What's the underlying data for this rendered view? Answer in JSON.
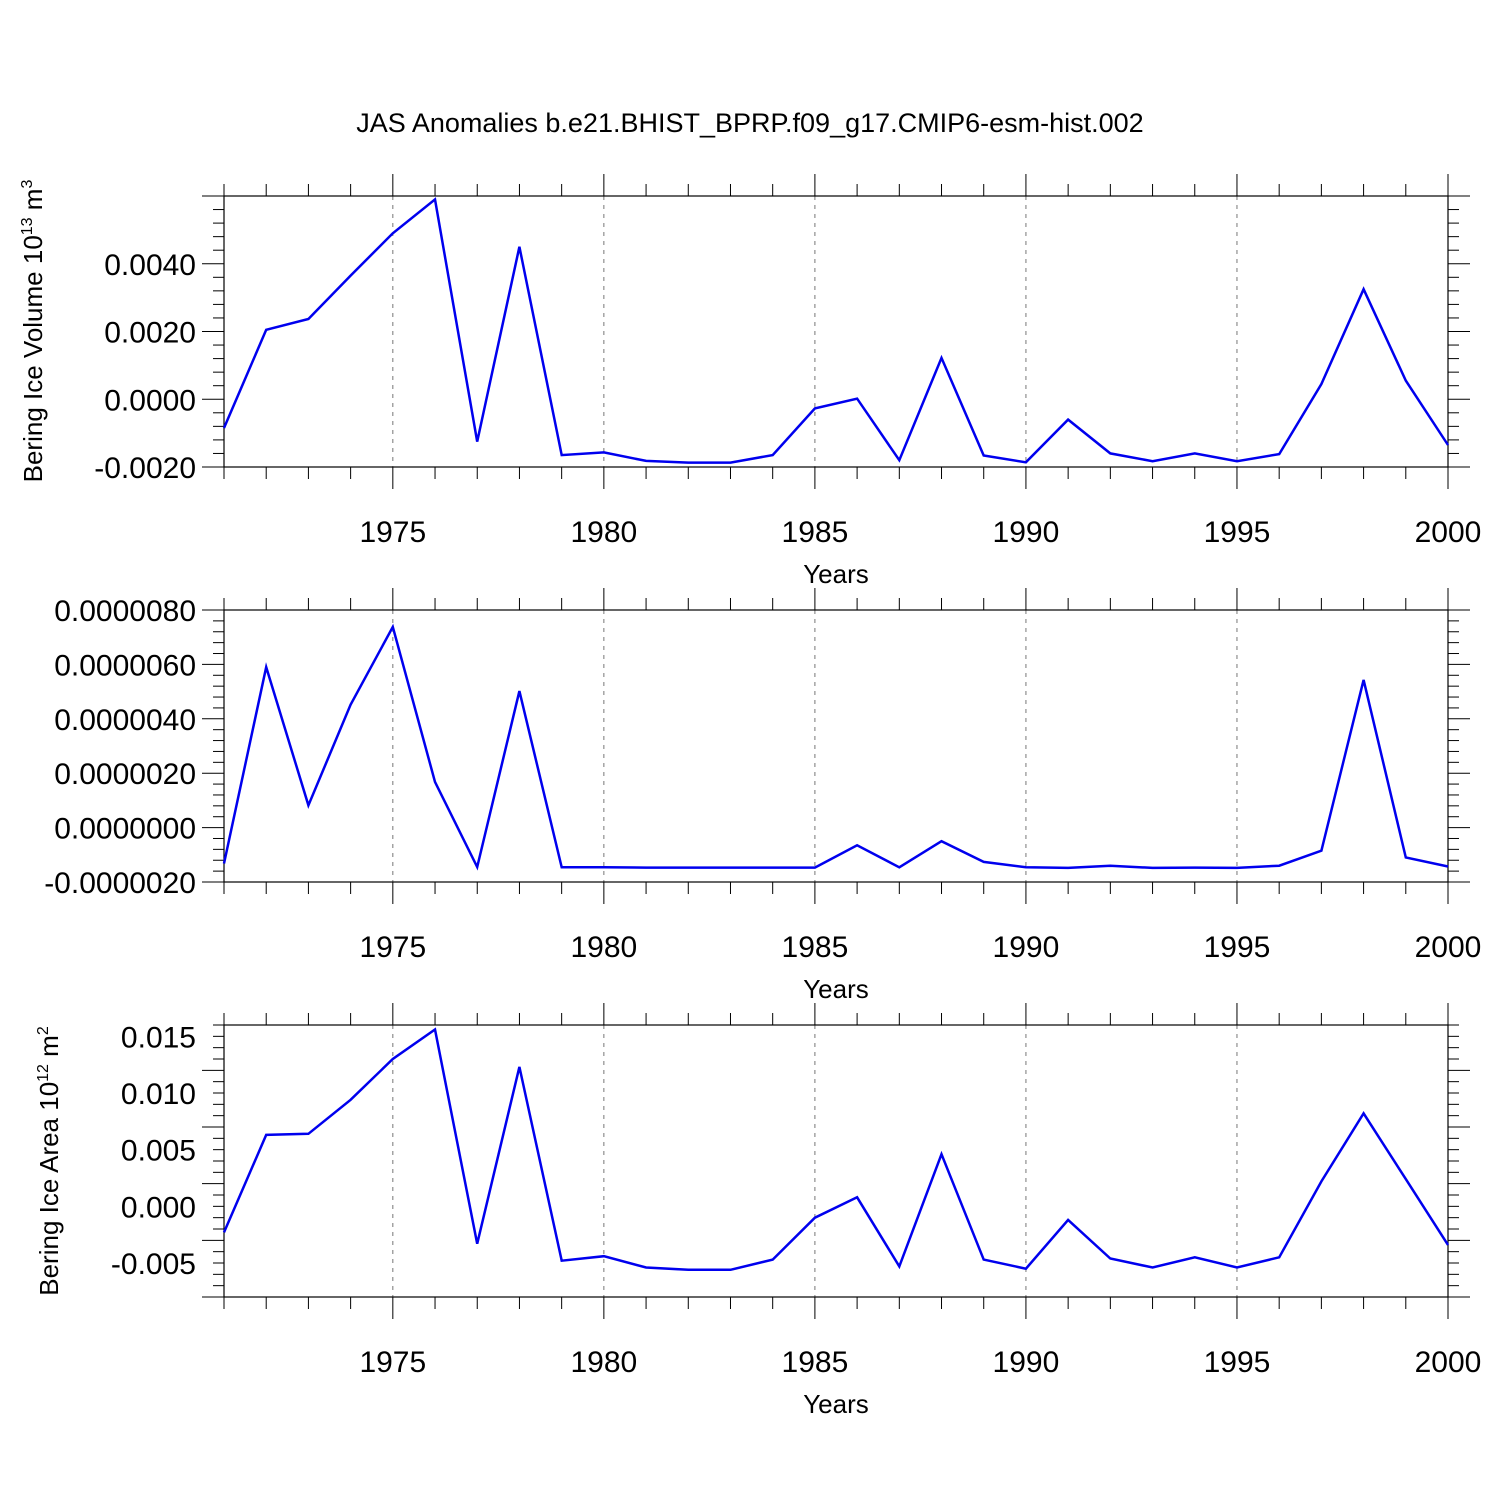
{
  "title": "JAS Anomalies b.e21.BHIST_BPRP.f09_g17.CMIP6-esm-hist.002",
  "chart_data": [
    {
      "type": "line",
      "title": "",
      "xlabel": "Years",
      "ylabel": "Bering Ice Volume 10",
      "ylabel_sup": "13",
      "ylabel_unit": " m",
      "ylabel_unit_sup": "3",
      "xlim": [
        1971,
        2000
      ],
      "ylim": [
        -0.002,
        0.006
      ],
      "xticks": [
        "1975",
        "1980",
        "1985",
        "1990",
        "1995",
        "2000"
      ],
      "yticks": [
        "-0.0020",
        "0.0000",
        "0.0020",
        "0.0040"
      ],
      "color": "#0000ee",
      "grid": "vertical dashed at major x ticks",
      "x": [
        1971,
        1972,
        1973,
        1974,
        1975,
        1976,
        1977,
        1978,
        1979,
        1980,
        1981,
        1982,
        1983,
        1984,
        1985,
        1986,
        1987,
        1988,
        1989,
        1990,
        1991,
        1992,
        1993,
        1994,
        1995,
        1996,
        1997,
        1998,
        1999,
        2000
      ],
      "values": [
        -0.00085,
        0.00205,
        0.00237,
        0.00365,
        0.0049,
        0.0059,
        -0.00125,
        0.0045,
        -0.00165,
        -0.00157,
        -0.00182,
        -0.00187,
        -0.00187,
        -0.00165,
        -0.00027,
        2e-05,
        -0.0018,
        0.00122,
        -0.00166,
        -0.00186,
        -0.0006,
        -0.0016,
        -0.00183,
        -0.0016,
        -0.00183,
        -0.00162,
        0.00045,
        0.00325,
        0.00055,
        -0.00135
      ]
    },
    {
      "type": "line",
      "title": "",
      "xlabel": "Years",
      "ylabel": "",
      "xlim": [
        1971,
        2000
      ],
      "ylim": [
        -2e-06,
        8e-06
      ],
      "xticks": [
        "1975",
        "1980",
        "1985",
        "1990",
        "1995",
        "2000"
      ],
      "yticks": [
        "-0.0000020",
        "0.0000000",
        "0.0000020",
        "0.0000040",
        "0.0000060",
        "0.0000080"
      ],
      "color": "#0000ee",
      "grid": "vertical dashed at major x ticks",
      "x": [
        1971,
        1972,
        1973,
        1974,
        1975,
        1976,
        1977,
        1978,
        1979,
        1980,
        1981,
        1982,
        1983,
        1984,
        1985,
        1986,
        1987,
        1988,
        1989,
        1990,
        1991,
        1992,
        1993,
        1994,
        1995,
        1996,
        1997,
        1998,
        1999,
        2000
      ],
      "values": [
        -1.32e-06,
        5.9e-06,
        8.2e-07,
        4.52e-06,
        7.38e-06,
        1.68e-06,
        -1.45e-06,
        5.02e-06,
        -1.46e-06,
        -1.46e-06,
        -1.47e-06,
        -1.47e-06,
        -1.47e-06,
        -1.47e-06,
        -1.47e-06,
        -6.5e-07,
        -1.46e-06,
        -5e-07,
        -1.26e-06,
        -1.46e-06,
        -1.48e-06,
        -1.4e-06,
        -1.48e-06,
        -1.47e-06,
        -1.48e-06,
        -1.4e-06,
        -8.5e-07,
        5.43e-06,
        -1.1e-06,
        -1.43e-06
      ]
    },
    {
      "type": "line",
      "title": "",
      "xlabel": "Years",
      "ylabel": "Bering Ice Area 10",
      "ylabel_sup": "12",
      "ylabel_unit": " m",
      "ylabel_unit_sup": "2",
      "xlim": [
        1971,
        2000
      ],
      "ylim": [
        -0.008,
        0.016
      ],
      "xticks": [
        "1975",
        "1980",
        "1985",
        "1990",
        "1995",
        "2000"
      ],
      "yticks": [
        "-0.005",
        "0.000",
        "0.005",
        "0.010",
        "0.015"
      ],
      "color": "#0000ee",
      "grid": "vertical dashed at major x ticks",
      "x": [
        1971,
        1972,
        1973,
        1974,
        1975,
        1976,
        1977,
        1978,
        1979,
        1980,
        1981,
        1982,
        1983,
        1984,
        1985,
        1986,
        1987,
        1988,
        1989,
        1990,
        1991,
        1992,
        1993,
        1994,
        1995,
        1996,
        1997,
        1998,
        1999,
        2000
      ],
      "values": [
        -0.0023,
        0.0063,
        0.0064,
        0.0094,
        0.013,
        0.0156,
        -0.0033,
        0.0123,
        -0.0048,
        -0.0044,
        -0.0054,
        -0.0056,
        -0.0056,
        -0.0047,
        -0.001,
        0.0008,
        -0.0053,
        0.0046,
        -0.0047,
        -0.0055,
        -0.0012,
        -0.0046,
        -0.0054,
        -0.0045,
        -0.0054,
        -0.0045,
        0.0022,
        0.0082,
        0.0024,
        -0.0034
      ]
    }
  ]
}
